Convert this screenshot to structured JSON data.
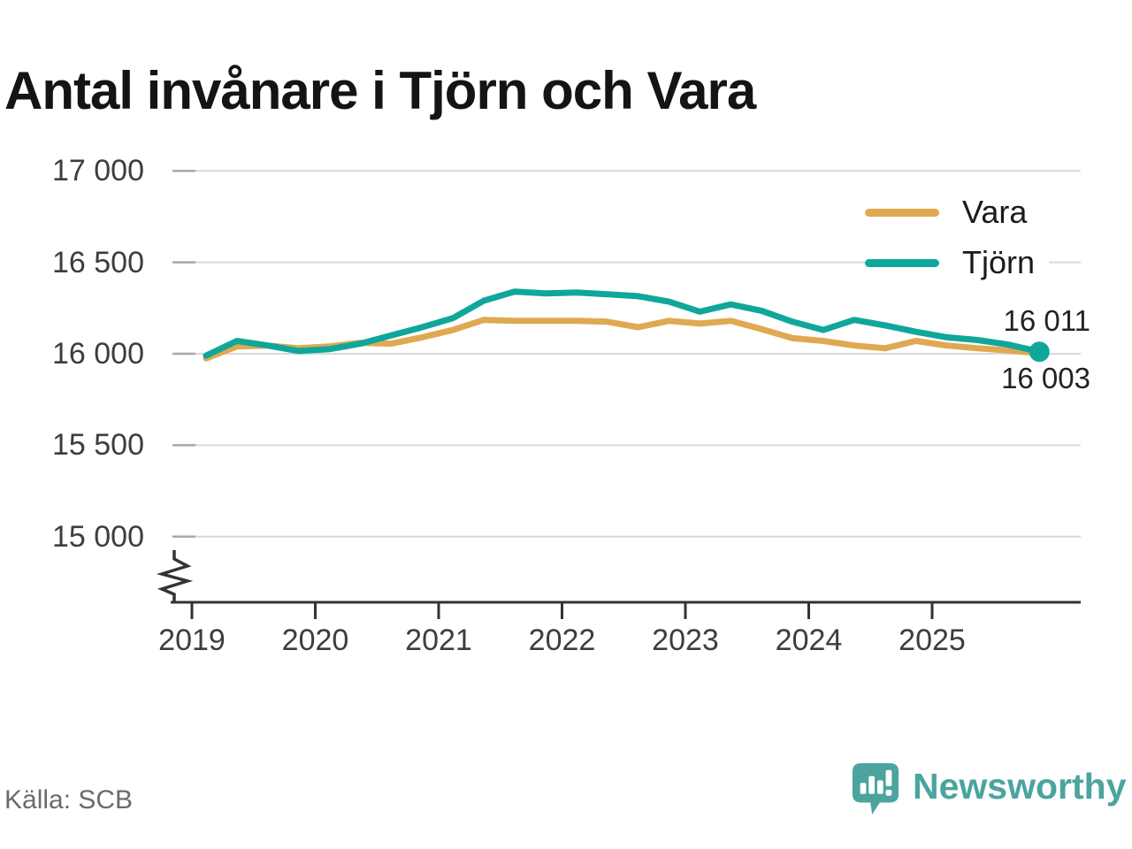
{
  "chart_data": {
    "type": "line",
    "title": "Antal invånare i Tjörn och Vara",
    "xlabel": "",
    "ylabel": "",
    "grid": "horizontal",
    "legend_position": "top-right",
    "y_axis": {
      "min": 15000,
      "max": 17000,
      "step": 500,
      "has_axis_break": true
    },
    "y_ticks": [
      {
        "label": "17 000",
        "value": 17000
      },
      {
        "label": "16 500",
        "value": 16500
      },
      {
        "label": "16 000",
        "value": 16000
      },
      {
        "label": "15 500",
        "value": 15500
      },
      {
        "label": "15 000",
        "value": 15000
      }
    ],
    "x_ticks": [
      "2019",
      "2020",
      "2021",
      "2022",
      "2023",
      "2024",
      "2025"
    ],
    "categories": [
      "2019Q1",
      "2019Q2",
      "2019Q3",
      "2019Q4",
      "2020Q1",
      "2020Q2",
      "2020Q3",
      "2020Q4",
      "2021Q1",
      "2021Q2",
      "2021Q3",
      "2021Q4",
      "2022Q1",
      "2022Q2",
      "2022Q3",
      "2022Q4",
      "2023Q1",
      "2023Q2",
      "2023Q3",
      "2023Q4",
      "2024Q1",
      "2024Q2",
      "2024Q3",
      "2024Q4",
      "2025Q1",
      "2025Q2",
      "2025Q3",
      "2025Q4"
    ],
    "series": [
      {
        "name": "Vara",
        "color": "#dfa951",
        "values": [
          15975,
          16040,
          16045,
          16030,
          16040,
          16060,
          16055,
          16090,
          16130,
          16185,
          16180,
          16180,
          16180,
          16175,
          16145,
          16180,
          16165,
          16180,
          16135,
          16085,
          16070,
          16045,
          16030,
          16070,
          16045,
          16030,
          16018,
          16003
        ]
      },
      {
        "name": "Tjörn",
        "color": "#0fa79b",
        "values": [
          15990,
          16070,
          16045,
          16015,
          16025,
          16055,
          16100,
          16145,
          16195,
          16290,
          16340,
          16330,
          16335,
          16325,
          16315,
          16285,
          16230,
          16270,
          16235,
          16175,
          16130,
          16185,
          16155,
          16120,
          16090,
          16075,
          16050,
          16011
        ]
      }
    ],
    "end_dot_series": "Tjörn",
    "end_labels": [
      {
        "text": "16 011",
        "series": "Tjörn",
        "position": "above"
      },
      {
        "text": "16 003",
        "series": "Vara",
        "position": "below"
      }
    ]
  },
  "source": {
    "label": "Källa: SCB"
  },
  "branding": {
    "wordmark": "Newsworthy",
    "logo_icon": "speech-bubble-bar-chart",
    "color": "#4ba49e"
  }
}
